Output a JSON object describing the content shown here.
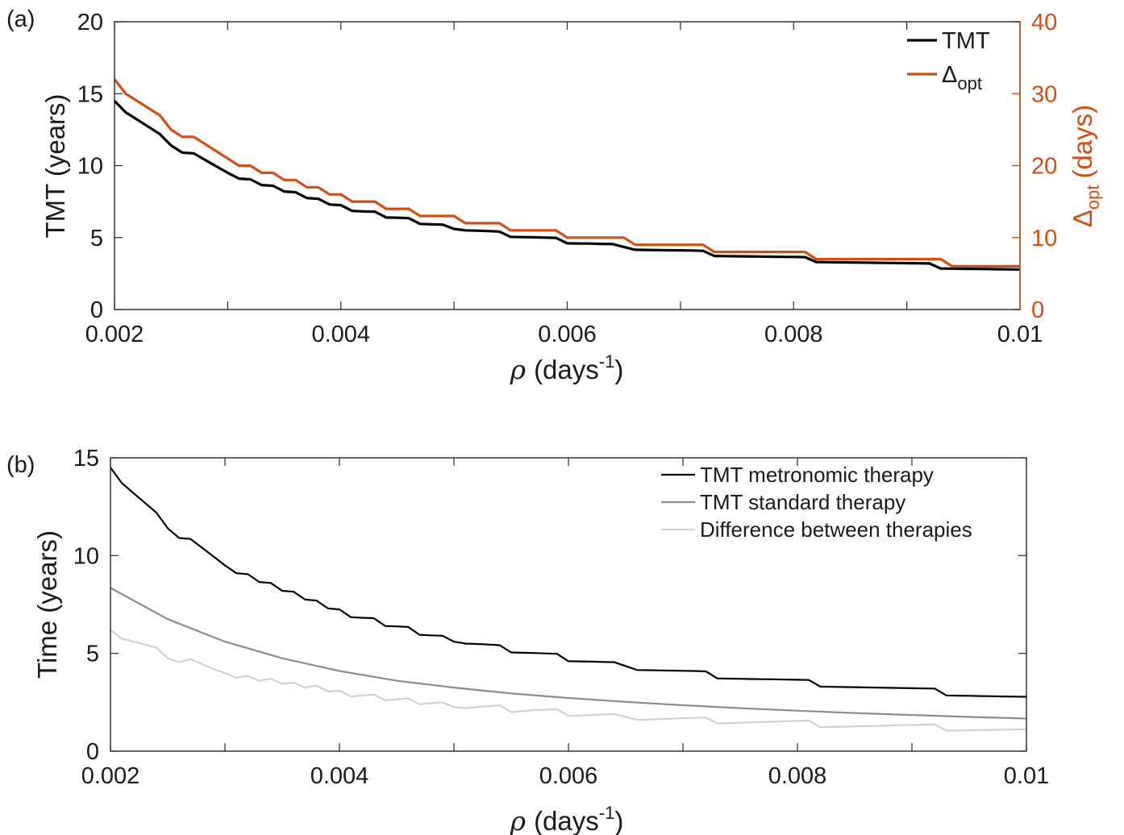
{
  "chart_data": [
    {
      "panel_label": "(a)",
      "type": "line",
      "xlabel": {
        "symbol": "ρ",
        "text": "(days",
        "sup": "-1",
        "close": ")"
      },
      "ylabel_left": "TMT (years)",
      "ylabel_right": {
        "main": "Δ",
        "sub": "opt",
        "rest": "(days)"
      },
      "xlim": [
        0.002,
        0.01
      ],
      "ylim_left": [
        0,
        20
      ],
      "ylim_right": [
        0,
        40
      ],
      "x_ticks": [
        "0.002",
        "0.004",
        "0.006",
        "0.008",
        "0.01"
      ],
      "y_ticks_left": [
        "0",
        "5",
        "10",
        "15",
        "20"
      ],
      "y_ticks_right": [
        "0",
        "10",
        "20",
        "30",
        "40"
      ],
      "legend": [
        {
          "text": "TMT",
          "color": "#000000"
        },
        {
          "text": "Δ",
          "sub": "opt",
          "color": "#d24e12"
        }
      ],
      "legend_position": "top-right",
      "series": [
        {
          "name": "TMT",
          "axis": "left",
          "color": "#000000",
          "x": [
            0.002,
            0.0021,
            0.0022,
            0.0023,
            0.0024,
            0.0025,
            0.0026,
            0.0027,
            0.0028,
            0.0029,
            0.003,
            0.0031,
            0.0032,
            0.0033,
            0.0034,
            0.0035,
            0.0036,
            0.0037,
            0.0038,
            0.0039,
            0.004,
            0.0041,
            0.0042,
            0.0043,
            0.0044,
            0.0045,
            0.0046,
            0.0047,
            0.0048,
            0.0049,
            0.005,
            0.0051,
            0.0052,
            0.0053,
            0.0054,
            0.0055,
            0.0056,
            0.0057,
            0.0058,
            0.0059,
            0.006,
            0.0061,
            0.0062,
            0.0063,
            0.0064,
            0.0065,
            0.0066,
            0.0067,
            0.0068,
            0.0069,
            0.007,
            0.0071,
            0.0072,
            0.0073,
            0.0074,
            0.0075,
            0.0076,
            0.0077,
            0.0078,
            0.0079,
            0.008,
            0.0081,
            0.0082,
            0.0083,
            0.0084,
            0.0085,
            0.0086,
            0.0087,
            0.0088,
            0.0089,
            0.009,
            0.0091,
            0.0092,
            0.0093,
            0.0094,
            0.0095,
            0.0096,
            0.0097,
            0.0098,
            0.0099,
            0.01
          ],
          "y": [
            14.5,
            13.7,
            13.2,
            12.7,
            12.2,
            11.4,
            10.9,
            10.85,
            10.4,
            9.95,
            9.5,
            9.1,
            9.05,
            8.65,
            8.6,
            8.2,
            8.15,
            7.75,
            7.7,
            7.3,
            7.25,
            6.85,
            6.82,
            6.8,
            6.4,
            6.38,
            6.35,
            5.95,
            5.92,
            5.9,
            5.6,
            5.5,
            5.48,
            5.45,
            5.42,
            5.05,
            5.03,
            5.02,
            5.0,
            4.98,
            4.6,
            4.59,
            4.58,
            4.56,
            4.55,
            4.35,
            4.15,
            4.14,
            4.13,
            4.12,
            4.11,
            4.1,
            4.08,
            3.72,
            3.71,
            3.7,
            3.69,
            3.68,
            3.67,
            3.66,
            3.65,
            3.64,
            3.3,
            3.29,
            3.28,
            3.27,
            3.26,
            3.25,
            3.24,
            3.23,
            3.22,
            3.21,
            3.2,
            2.85,
            2.84,
            2.83,
            2.82,
            2.81,
            2.8,
            2.79,
            2.78
          ]
        },
        {
          "name": "Δopt",
          "axis": "right",
          "color": "#d24e12",
          "x": [
            0.002,
            0.0021,
            0.0024,
            0.0025,
            0.0026,
            0.0027,
            0.0031,
            0.0032,
            0.0033,
            0.0034,
            0.0035,
            0.0036,
            0.0037,
            0.0038,
            0.0039,
            0.004,
            0.0041,
            0.0042,
            0.0043,
            0.0044,
            0.0045,
            0.0046,
            0.0047,
            0.0048,
            0.0049,
            0.005,
            0.0051,
            0.0052,
            0.0053,
            0.0054,
            0.0055,
            0.0056,
            0.0057,
            0.0058,
            0.0059,
            0.006,
            0.0061,
            0.0062,
            0.0063,
            0.0064,
            0.0065,
            0.0066,
            0.0067,
            0.0068,
            0.0069,
            0.007,
            0.0071,
            0.0072,
            0.0073,
            0.0074,
            0.0075,
            0.0076,
            0.0077,
            0.0078,
            0.0079,
            0.008,
            0.0081,
            0.0082,
            0.0083,
            0.0084,
            0.0085,
            0.0086,
            0.0087,
            0.0088,
            0.0089,
            0.009,
            0.0091,
            0.0092,
            0.0093,
            0.0094,
            0.0095,
            0.0096,
            0.0097,
            0.0098,
            0.0099,
            0.01
          ],
          "y": [
            32,
            30,
            27,
            25,
            24,
            24,
            20,
            20,
            19,
            19,
            18,
            18,
            17,
            17,
            16,
            16,
            15,
            15,
            15,
            14,
            14,
            14,
            13,
            13,
            13,
            13,
            12,
            12,
            12,
            12,
            11,
            11,
            11,
            11,
            11,
            10,
            10,
            10,
            10,
            10,
            10,
            9,
            9,
            9,
            9,
            9,
            9,
            9,
            8,
            8,
            8,
            8,
            8,
            8,
            8,
            8,
            8,
            7,
            7,
            7,
            7,
            7,
            7,
            7,
            7,
            7,
            7,
            7,
            7,
            6,
            6,
            6,
            6,
            6,
            6,
            6
          ]
        }
      ]
    },
    {
      "panel_label": "(b)",
      "type": "line",
      "xlabel": {
        "symbol": "ρ",
        "text": "(days",
        "sup": "-1",
        "close": ")"
      },
      "ylabel": "Time (years)",
      "xlim": [
        0.002,
        0.01
      ],
      "ylim": [
        0,
        15
      ],
      "x_ticks": [
        "0.002",
        "0.004",
        "0.006",
        "0.008",
        "0.01"
      ],
      "y_ticks": [
        "0",
        "5",
        "10",
        "15"
      ],
      "legend_position": "top-right",
      "series": [
        {
          "name": "TMT metronomic therapy",
          "color": "#000000",
          "x": [
            0.002,
            0.0021,
            0.0022,
            0.0023,
            0.0024,
            0.0025,
            0.0026,
            0.0027,
            0.0028,
            0.0029,
            0.003,
            0.0031,
            0.0032,
            0.0033,
            0.0034,
            0.0035,
            0.0036,
            0.0037,
            0.0038,
            0.0039,
            0.004,
            0.0041,
            0.0042,
            0.0043,
            0.0044,
            0.0045,
            0.0046,
            0.0047,
            0.0048,
            0.0049,
            0.005,
            0.0051,
            0.0052,
            0.0053,
            0.0054,
            0.0055,
            0.0056,
            0.0057,
            0.0058,
            0.0059,
            0.006,
            0.0061,
            0.0062,
            0.0063,
            0.0064,
            0.0065,
            0.0066,
            0.0067,
            0.0068,
            0.0069,
            0.007,
            0.0071,
            0.0072,
            0.0073,
            0.0074,
            0.0075,
            0.0076,
            0.0077,
            0.0078,
            0.0079,
            0.008,
            0.0081,
            0.0082,
            0.0083,
            0.0084,
            0.0085,
            0.0086,
            0.0087,
            0.0088,
            0.0089,
            0.009,
            0.0091,
            0.0092,
            0.0093,
            0.0094,
            0.0095,
            0.0096,
            0.0097,
            0.0098,
            0.0099,
            0.01
          ],
          "y": [
            14.5,
            13.7,
            13.2,
            12.7,
            12.2,
            11.4,
            10.9,
            10.85,
            10.4,
            9.95,
            9.5,
            9.1,
            9.05,
            8.65,
            8.6,
            8.2,
            8.15,
            7.75,
            7.7,
            7.3,
            7.25,
            6.85,
            6.82,
            6.8,
            6.4,
            6.38,
            6.35,
            5.95,
            5.92,
            5.9,
            5.6,
            5.5,
            5.48,
            5.45,
            5.42,
            5.05,
            5.03,
            5.02,
            5.0,
            4.98,
            4.6,
            4.59,
            4.58,
            4.56,
            4.55,
            4.35,
            4.15,
            4.14,
            4.13,
            4.12,
            4.11,
            4.1,
            4.08,
            3.72,
            3.71,
            3.7,
            3.69,
            3.68,
            3.67,
            3.66,
            3.65,
            3.64,
            3.3,
            3.29,
            3.28,
            3.27,
            3.26,
            3.25,
            3.24,
            3.23,
            3.22,
            3.21,
            3.2,
            2.85,
            2.84,
            2.83,
            2.82,
            2.81,
            2.8,
            2.79,
            2.78
          ]
        },
        {
          "name": "TMT standard therapy",
          "color": "#8c8c8c",
          "x": [
            0.002,
            0.0025,
            0.003,
            0.0035,
            0.004,
            0.0045,
            0.005,
            0.0055,
            0.006,
            0.0065,
            0.007,
            0.0075,
            0.008,
            0.0085,
            0.009,
            0.0095,
            0.01
          ],
          "y": [
            8.35,
            6.75,
            5.6,
            4.75,
            4.1,
            3.6,
            3.25,
            2.95,
            2.72,
            2.52,
            2.35,
            2.2,
            2.07,
            1.95,
            1.85,
            1.75,
            1.67
          ]
        },
        {
          "name": "Difference between therapies",
          "color": "#d0d0d0",
          "x": [
            0.002,
            0.0021,
            0.0022,
            0.0023,
            0.0024,
            0.0025,
            0.0026,
            0.0027,
            0.0028,
            0.0029,
            0.003,
            0.0031,
            0.0032,
            0.0033,
            0.0034,
            0.0035,
            0.0036,
            0.0037,
            0.0038,
            0.0039,
            0.004,
            0.0041,
            0.0042,
            0.0043,
            0.0044,
            0.0045,
            0.0046,
            0.0047,
            0.0048,
            0.0049,
            0.005,
            0.0051,
            0.0052,
            0.0053,
            0.0054,
            0.0055,
            0.0056,
            0.0057,
            0.0058,
            0.0059,
            0.006,
            0.0061,
            0.0062,
            0.0063,
            0.0064,
            0.0065,
            0.0066,
            0.0067,
            0.0068,
            0.0069,
            0.007,
            0.0071,
            0.0072,
            0.0073,
            0.0074,
            0.0075,
            0.0076,
            0.0077,
            0.0078,
            0.0079,
            0.008,
            0.0081,
            0.0082,
            0.0083,
            0.0084,
            0.0085,
            0.0086,
            0.0087,
            0.0088,
            0.0089,
            0.009,
            0.0091,
            0.0092,
            0.0093,
            0.0094,
            0.0095,
            0.0096,
            0.0097,
            0.0098,
            0.0099,
            0.01
          ],
          "y": [
            6.2,
            5.75,
            5.6,
            5.45,
            5.3,
            4.75,
            4.55,
            4.7,
            4.45,
            4.2,
            4.0,
            3.75,
            3.85,
            3.6,
            3.7,
            3.45,
            3.5,
            3.25,
            3.35,
            3.05,
            3.1,
            2.8,
            2.85,
            2.9,
            2.6,
            2.65,
            2.7,
            2.4,
            2.45,
            2.5,
            2.25,
            2.2,
            2.25,
            2.3,
            2.35,
            2.0,
            2.05,
            2.1,
            2.12,
            2.15,
            1.8,
            1.82,
            1.85,
            1.87,
            1.9,
            1.75,
            1.6,
            1.62,
            1.64,
            1.66,
            1.68,
            1.7,
            1.72,
            1.42,
            1.43,
            1.45,
            1.47,
            1.49,
            1.51,
            1.53,
            1.55,
            1.57,
            1.23,
            1.24,
            1.25,
            1.27,
            1.28,
            1.29,
            1.31,
            1.33,
            1.34,
            1.35,
            1.37,
            1.05,
            1.06,
            1.07,
            1.08,
            1.09,
            1.1,
            1.11,
            1.12
          ]
        }
      ]
    }
  ]
}
